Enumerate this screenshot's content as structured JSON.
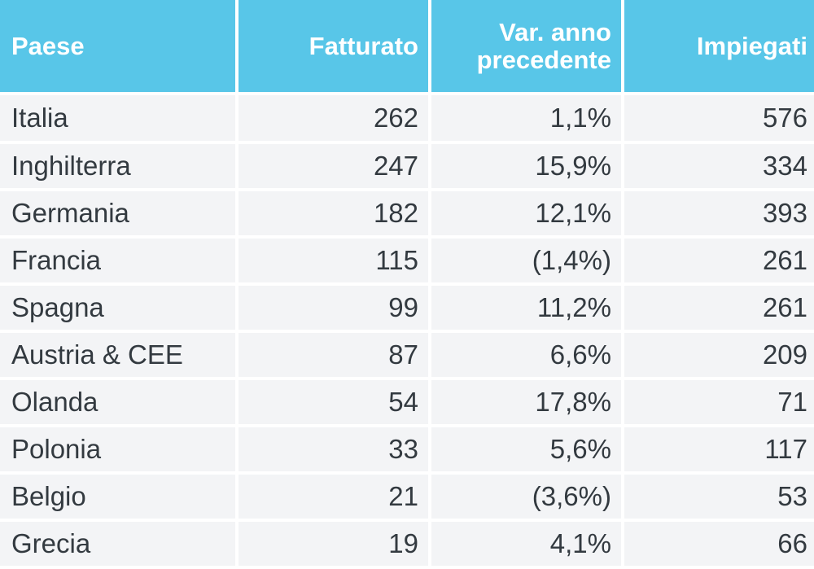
{
  "chart_data": {
    "type": "table",
    "columns": [
      "Paese",
      "Fatturato",
      "Var. anno precedente",
      "Impiegati"
    ],
    "rows": [
      {
        "paese": "Italia",
        "fatturato": "262",
        "var": "1,1%",
        "impiegati": "576"
      },
      {
        "paese": "Inghilterra",
        "fatturato": "247",
        "var": "15,9%",
        "impiegati": "334"
      },
      {
        "paese": "Germania",
        "fatturato": "182",
        "var": "12,1%",
        "impiegati": "393"
      },
      {
        "paese": "Francia",
        "fatturato": "115",
        "var": "(1,4%)",
        "impiegati": "261"
      },
      {
        "paese": "Spagna",
        "fatturato": "99",
        "var": "11,2%",
        "impiegati": "261"
      },
      {
        "paese": "Austria & CEE",
        "fatturato": "87",
        "var": "6,6%",
        "impiegati": "209"
      },
      {
        "paese": "Olanda",
        "fatturato": "54",
        "var": "17,8%",
        "impiegati": "71"
      },
      {
        "paese": "Polonia",
        "fatturato": "33",
        "var": "5,6%",
        "impiegati": "117"
      },
      {
        "paese": "Belgio",
        "fatturato": "21",
        "var": "(3,6%)",
        "impiegati": "53"
      },
      {
        "paese": "Grecia",
        "fatturato": "19",
        "var": "4,1%",
        "impiegati": "66"
      }
    ],
    "header_color": "#58c6e8",
    "row_color": "#f3f4f6"
  }
}
